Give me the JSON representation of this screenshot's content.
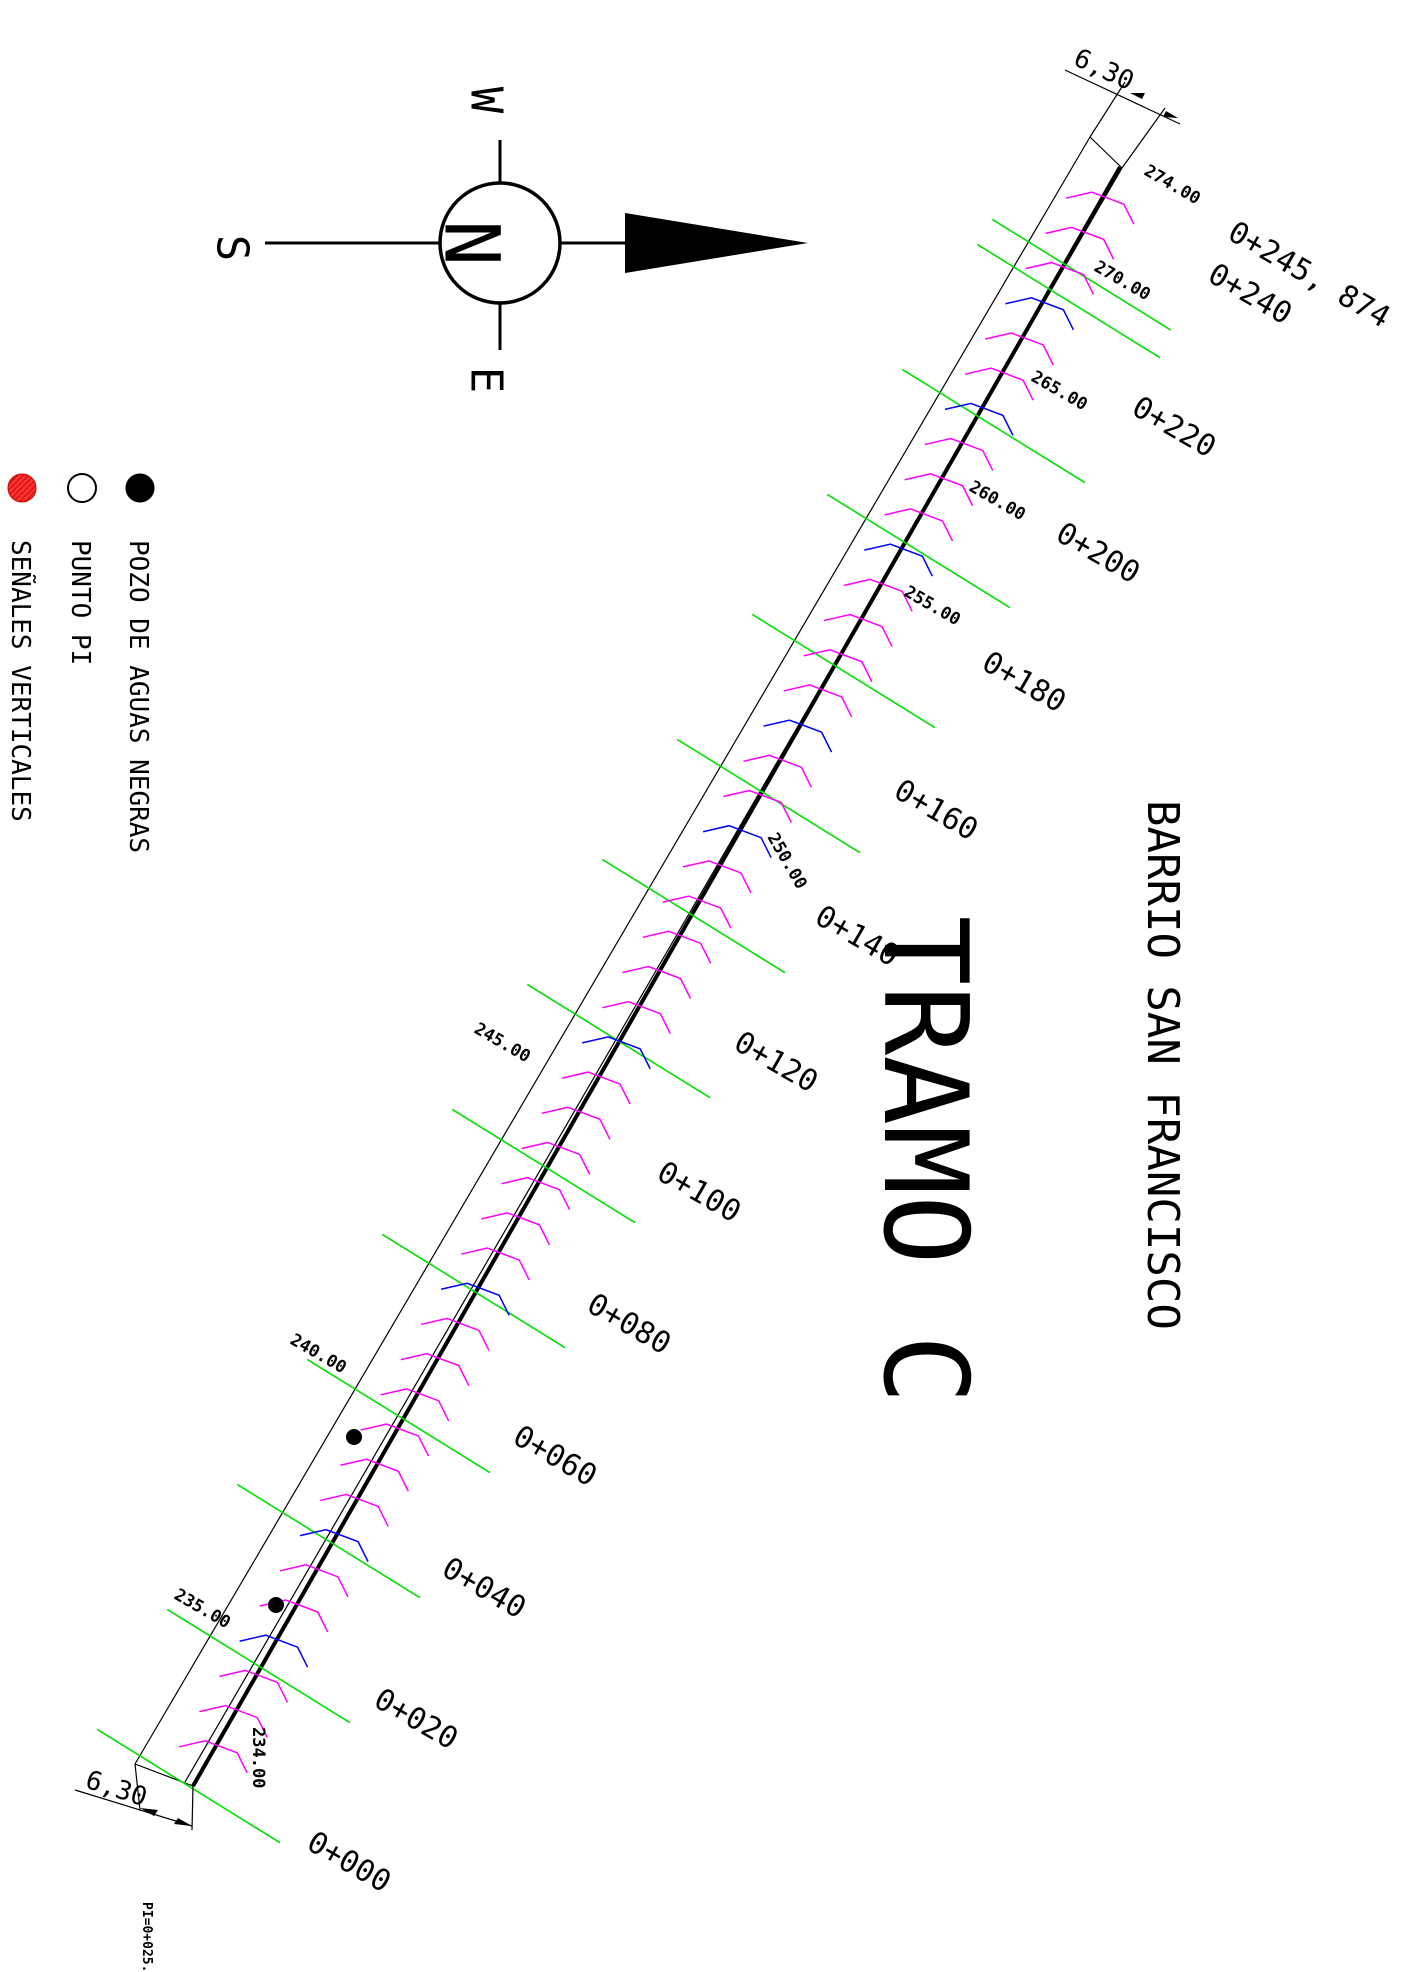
{
  "title": {
    "project": "BARRIO SAN FRANCISCO",
    "section": "TRAMO C"
  },
  "compass": {
    "north": "N",
    "west": "W",
    "east": "E",
    "south": "S"
  },
  "legend": [
    {
      "label": "POZO DE AGUAS NEGRAS",
      "symbol": "filled-black-circle"
    },
    {
      "label": "PUNTO PI",
      "symbol": "open-circle"
    },
    {
      "label": "SEÑALES VERTICALES",
      "symbol": "red-hatched-circle"
    }
  ],
  "width_dims": {
    "start": "6,30",
    "end": "6,30"
  },
  "stations": [
    "0+000",
    "0+020",
    "0+040",
    "0+060",
    "0+080",
    "0+100",
    "0+120",
    "0+140",
    "0+160",
    "0+180",
    "0+200",
    "0+220",
    "0+240",
    "0+245, 874"
  ],
  "contours": [
    "234.00",
    "235.00",
    "240.00",
    "245.00",
    "250.00",
    "255.00",
    "260.00",
    "265.00",
    "270.00",
    "274.00"
  ],
  "footnote": "PI=0+025.",
  "colors": {
    "station_line": "#00e000",
    "contour_minor": "#ff00ff",
    "contour_major": "#0000ff",
    "road": "#000000",
    "legend_red": "#ff2020"
  }
}
